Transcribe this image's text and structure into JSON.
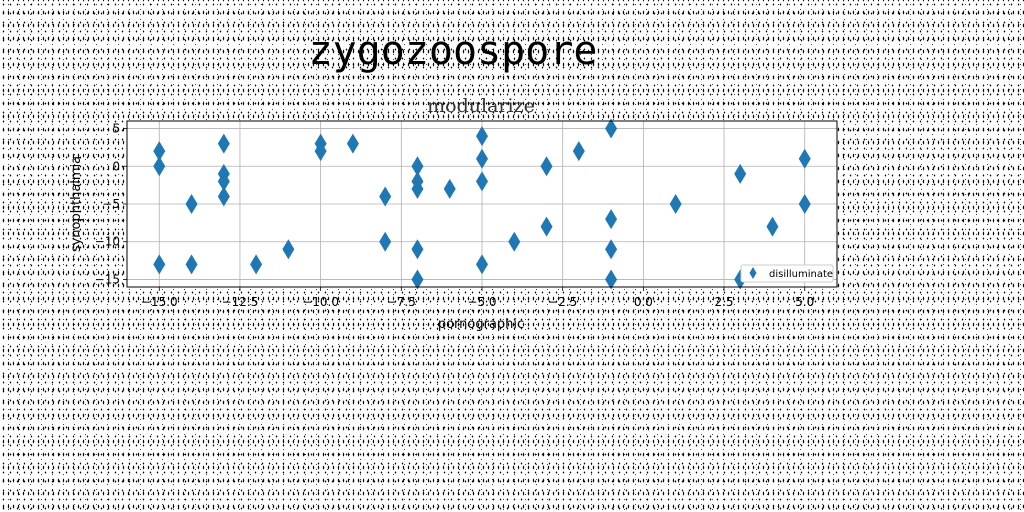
{
  "figure_title": "zygozoospore",
  "chart_data": {
    "type": "scatter",
    "title": "modularize",
    "xlabel": "pornographic",
    "ylabel": "synophthalmia",
    "xlim": [
      -16,
      6
    ],
    "ylim": [
      -16,
      6
    ],
    "xticks": [
      -15.0,
      -12.5,
      -10.0,
      -7.5,
      -5.0,
      -2.5,
      0.0,
      2.5,
      5.0
    ],
    "xtick_labels": [
      "−15.0",
      "−12.5",
      "−10.0",
      "−7.5",
      "−5.0",
      "−2.5",
      "0.0",
      "2.5",
      "5.0"
    ],
    "yticks": [
      5,
      0,
      -5,
      -10,
      -15
    ],
    "ytick_labels": [
      "5",
      "0",
      "−5",
      "−10",
      "−15"
    ],
    "grid": true,
    "legend_position": "lower-right",
    "marker": "thin-diamond",
    "color": "#1f77b4",
    "series": [
      {
        "name": "disilluminate",
        "points": [
          [
            -15,
            2
          ],
          [
            -15,
            0
          ],
          [
            -15,
            -13
          ],
          [
            -14,
            -5
          ],
          [
            -14,
            -13
          ],
          [
            -13,
            3
          ],
          [
            -13,
            -1
          ],
          [
            -13,
            -2
          ],
          [
            -13,
            -4
          ],
          [
            -12,
            -13
          ],
          [
            -11,
            -11
          ],
          [
            -10,
            3
          ],
          [
            -10,
            2
          ],
          [
            -9,
            3
          ],
          [
            -8,
            -4
          ],
          [
            -8,
            -10
          ],
          [
            -7,
            0
          ],
          [
            -7,
            -2
          ],
          [
            -7,
            -3
          ],
          [
            -7,
            -11
          ],
          [
            -7,
            -15
          ],
          [
            -6,
            -3
          ],
          [
            -5,
            4
          ],
          [
            -5,
            1
          ],
          [
            -5,
            -2
          ],
          [
            -5,
            -13
          ],
          [
            -4,
            -10
          ],
          [
            -3,
            0
          ],
          [
            -3,
            -8
          ],
          [
            -2,
            2
          ],
          [
            -1,
            5
          ],
          [
            -1,
            -7
          ],
          [
            -1,
            -11
          ],
          [
            -1,
            -15
          ],
          [
            1,
            -5
          ],
          [
            3,
            -1
          ],
          [
            3,
            -15
          ],
          [
            4,
            -8
          ],
          [
            5,
            1
          ],
          [
            5,
            -5
          ]
        ]
      }
    ]
  }
}
